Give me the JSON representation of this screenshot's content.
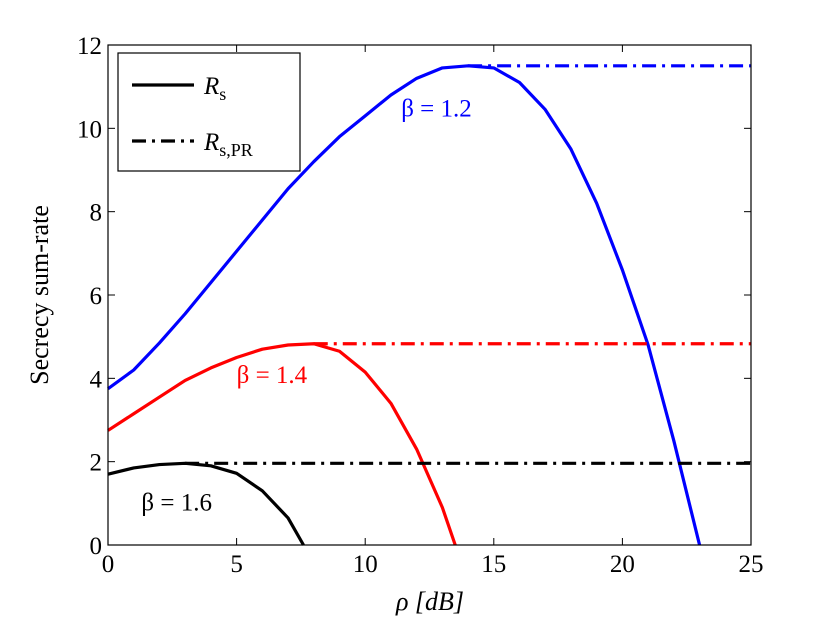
{
  "chart_data": {
    "type": "line",
    "xlabel": "ρ [dB]",
    "ylabel": "Secrecy sum-rate",
    "xlim": [
      0,
      25
    ],
    "ylim": [
      0,
      12
    ],
    "xticks": [
      "0",
      "5",
      "10",
      "15",
      "20",
      "25"
    ],
    "yticks": [
      "0",
      "2",
      "4",
      "6",
      "8",
      "10",
      "12"
    ],
    "grid": false,
    "legend_position": "top-left",
    "legend": [
      {
        "label": "R_s",
        "style": "solid"
      },
      {
        "label": "R_s,PR",
        "style": "dashdot"
      }
    ],
    "series": [
      {
        "beta": "β = 1.2",
        "color": "#0000ff",
        "rs": {
          "x": [
            0,
            1,
            2,
            3,
            4,
            5,
            6,
            7,
            8,
            9,
            10,
            11,
            12,
            13,
            14,
            15,
            16,
            17,
            18,
            19,
            20,
            21,
            22,
            23
          ],
          "y": [
            3.75,
            4.2,
            4.85,
            5.55,
            6.3,
            7.05,
            7.8,
            8.55,
            9.2,
            9.8,
            10.3,
            10.8,
            11.2,
            11.45,
            11.5,
            11.45,
            11.1,
            10.45,
            9.5,
            8.2,
            6.6,
            4.8,
            2.5,
            0.0
          ]
        },
        "rspr": {
          "x": [
            14,
            25
          ],
          "y": [
            11.5,
            11.5
          ]
        }
      },
      {
        "beta": "β = 1.4",
        "color": "#ff0000",
        "rs": {
          "x": [
            0,
            1,
            2,
            3,
            4,
            5,
            6,
            7,
            8,
            9,
            10,
            11,
            12,
            13,
            13.5
          ],
          "y": [
            2.75,
            3.15,
            3.55,
            3.95,
            4.25,
            4.5,
            4.7,
            4.8,
            4.83,
            4.65,
            4.15,
            3.4,
            2.3,
            0.9,
            0.0
          ]
        },
        "rspr": {
          "x": [
            8,
            25
          ],
          "y": [
            4.83,
            4.83
          ]
        }
      },
      {
        "beta": "β = 1.6",
        "color": "#000000",
        "rs": {
          "x": [
            0,
            1,
            2,
            3,
            4,
            5,
            6,
            7,
            7.6
          ],
          "y": [
            1.7,
            1.85,
            1.93,
            1.96,
            1.9,
            1.72,
            1.3,
            0.65,
            0.0
          ]
        },
        "rspr": {
          "x": [
            3,
            25
          ],
          "y": [
            1.96,
            1.96
          ]
        }
      }
    ]
  }
}
